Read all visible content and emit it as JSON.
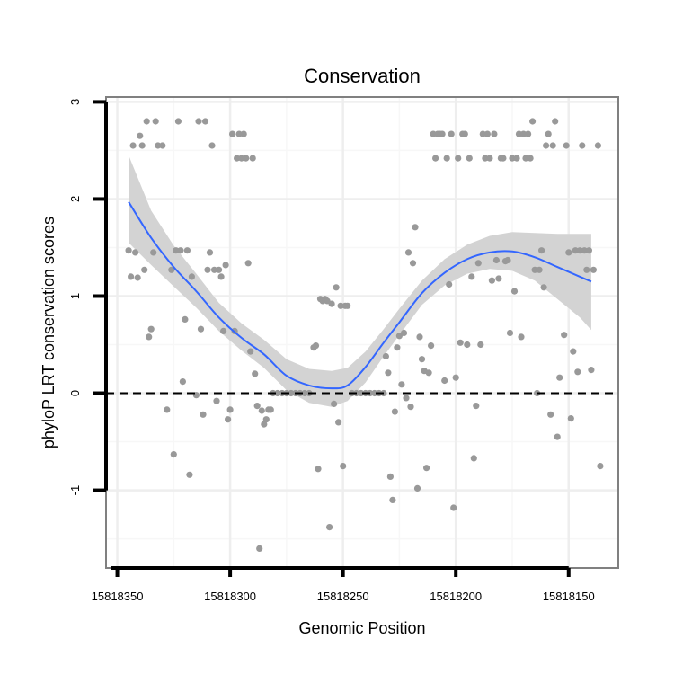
{
  "chart_data": {
    "type": "scatter",
    "title": "Conservation",
    "xlabel": "Genomic Position",
    "ylabel": "phyloP LRT conservation scores",
    "xlim": [
      15818355,
      15818128
    ],
    "ylim": [
      -1.8,
      3.05
    ],
    "x_reversed": true,
    "grid": true,
    "legend": "none",
    "x_ticks": [
      {
        "value": 15818350,
        "label": "15818350"
      },
      {
        "value": 15818300,
        "label": "15818300"
      },
      {
        "value": 15818250,
        "label": "15818250"
      },
      {
        "value": 15818200,
        "label": "15818200"
      },
      {
        "value": 15818150,
        "label": "15818150"
      }
    ],
    "y_ticks": [
      {
        "value": -1,
        "label": "-1"
      },
      {
        "value": 0,
        "label": "0"
      },
      {
        "value": 1,
        "label": "1"
      },
      {
        "value": 2,
        "label": "2"
      },
      {
        "value": 3,
        "label": "3"
      }
    ],
    "reference_line": {
      "y": 0,
      "style": "dashed"
    },
    "colors": {
      "points": "#999999",
      "smooth_line": "#3366FF",
      "confidence_band": "#D3D3D3",
      "panel_border": "#808080",
      "grid_major": "#EEEEEE",
      "grid_minor": "#F7F7F7"
    },
    "smooth": {
      "x": [
        15818345,
        15818335,
        15818325,
        15818315,
        15818305,
        15818295,
        15818285,
        15818275,
        15818265,
        15818255,
        15818248,
        15818240,
        15818232,
        15818225,
        15818215,
        15818205,
        15818195,
        15818185,
        15818175,
        15818165,
        15818155,
        15818145,
        15818140
      ],
      "y": [
        1.97,
        1.6,
        1.3,
        1.05,
        0.78,
        0.57,
        0.4,
        0.18,
        0.08,
        0.05,
        0.08,
        0.27,
        0.52,
        0.73,
        1.03,
        1.24,
        1.38,
        1.45,
        1.46,
        1.4,
        1.3,
        1.2,
        1.15
      ],
      "lower": [
        1.55,
        1.32,
        1.1,
        0.88,
        0.64,
        0.44,
        0.26,
        0.03,
        -0.1,
        -0.14,
        -0.08,
        0.11,
        0.38,
        0.6,
        0.91,
        1.11,
        1.23,
        1.28,
        1.26,
        1.16,
        0.97,
        0.78,
        0.65
      ],
      "upper": [
        2.45,
        1.88,
        1.52,
        1.23,
        0.93,
        0.72,
        0.55,
        0.35,
        0.25,
        0.23,
        0.26,
        0.43,
        0.66,
        0.87,
        1.16,
        1.38,
        1.53,
        1.62,
        1.66,
        1.65,
        1.64,
        1.64,
        1.64
      ]
    },
    "points": [
      {
        "x": 15818345,
        "y": 1.47
      },
      {
        "x": 15818344,
        "y": 1.2
      },
      {
        "x": 15818343,
        "y": 2.55
      },
      {
        "x": 15818342,
        "y": 1.45
      },
      {
        "x": 15818341,
        "y": 1.19
      },
      {
        "x": 15818340,
        "y": 2.65
      },
      {
        "x": 15818339,
        "y": 2.55
      },
      {
        "x": 15818338,
        "y": 1.27
      },
      {
        "x": 15818337,
        "y": 2.8
      },
      {
        "x": 15818336,
        "y": 0.58
      },
      {
        "x": 15818335,
        "y": 0.66
      },
      {
        "x": 15818334,
        "y": 1.45
      },
      {
        "x": 15818333,
        "y": 2.8
      },
      {
        "x": 15818332,
        "y": 2.55
      },
      {
        "x": 15818330,
        "y": 2.55
      },
      {
        "x": 15818328,
        "y": -0.17
      },
      {
        "x": 15818326,
        "y": 1.27
      },
      {
        "x": 15818325,
        "y": -0.63
      },
      {
        "x": 15818324,
        "y": 1.47
      },
      {
        "x": 15818323,
        "y": 2.8
      },
      {
        "x": 15818322,
        "y": 1.47
      },
      {
        "x": 15818321,
        "y": 0.12
      },
      {
        "x": 15818320,
        "y": 0.76
      },
      {
        "x": 15818319,
        "y": 1.47
      },
      {
        "x": 15818318,
        "y": -0.84
      },
      {
        "x": 15818317,
        "y": 1.2
      },
      {
        "x": 15818315,
        "y": -0.02
      },
      {
        "x": 15818314,
        "y": 2.8
      },
      {
        "x": 15818313,
        "y": 0.66
      },
      {
        "x": 15818312,
        "y": -0.22
      },
      {
        "x": 15818311,
        "y": 2.8
      },
      {
        "x": 15818310,
        "y": 1.27
      },
      {
        "x": 15818309,
        "y": 1.45
      },
      {
        "x": 15818308,
        "y": 2.55
      },
      {
        "x": 15818307,
        "y": 1.27
      },
      {
        "x": 15818306,
        "y": -0.08
      },
      {
        "x": 15818305,
        "y": 1.27
      },
      {
        "x": 15818304,
        "y": 1.2
      },
      {
        "x": 15818303,
        "y": 0.64
      },
      {
        "x": 15818302,
        "y": 1.32
      },
      {
        "x": 15818301,
        "y": -0.27
      },
      {
        "x": 15818300,
        "y": -0.17
      },
      {
        "x": 15818299,
        "y": 2.67
      },
      {
        "x": 15818298,
        "y": 0.64
      },
      {
        "x": 15818297,
        "y": 2.42
      },
      {
        "x": 15818296,
        "y": 2.67
      },
      {
        "x": 15818295,
        "y": 2.42
      },
      {
        "x": 15818294,
        "y": 2.67
      },
      {
        "x": 15818293,
        "y": 2.42
      },
      {
        "x": 15818292,
        "y": 1.34
      },
      {
        "x": 15818291,
        "y": 0.43
      },
      {
        "x": 15818290,
        "y": 2.42
      },
      {
        "x": 15818289,
        "y": 0.2
      },
      {
        "x": 15818288,
        "y": -0.13
      },
      {
        "x": 15818287,
        "y": -1.6
      },
      {
        "x": 15818286,
        "y": -0.18
      },
      {
        "x": 15818285,
        "y": -0.32
      },
      {
        "x": 15818284,
        "y": -0.27
      },
      {
        "x": 15818283,
        "y": -0.17
      },
      {
        "x": 15818282,
        "y": -0.17
      },
      {
        "x": 15818281,
        "y": 0.0
      },
      {
        "x": 15818279,
        "y": 0.0
      },
      {
        "x": 15818277,
        "y": 0.0
      },
      {
        "x": 15818275,
        "y": 0.0
      },
      {
        "x": 15818273,
        "y": 0.0
      },
      {
        "x": 15818271,
        "y": 0.0
      },
      {
        "x": 15818269,
        "y": 0.0
      },
      {
        "x": 15818267,
        "y": 0.0
      },
      {
        "x": 15818265,
        "y": 0.0
      },
      {
        "x": 15818263,
        "y": 0.47
      },
      {
        "x": 15818262,
        "y": 0.49
      },
      {
        "x": 15818261,
        "y": -0.78
      },
      {
        "x": 15818260,
        "y": 0.97
      },
      {
        "x": 15818259,
        "y": 0.95
      },
      {
        "x": 15818258,
        "y": 0.97
      },
      {
        "x": 15818257,
        "y": 0.95
      },
      {
        "x": 15818256,
        "y": -1.38
      },
      {
        "x": 15818255,
        "y": 0.92
      },
      {
        "x": 15818254,
        "y": -0.11
      },
      {
        "x": 15818253,
        "y": 1.09
      },
      {
        "x": 15818252,
        "y": -0.3
      },
      {
        "x": 15818251,
        "y": 0.9
      },
      {
        "x": 15818250,
        "y": -0.75
      },
      {
        "x": 15818249,
        "y": 0.9
      },
      {
        "x": 15818248,
        "y": 0.9
      },
      {
        "x": 15818246,
        "y": 0.0
      },
      {
        "x": 15818244,
        "y": 0.0
      },
      {
        "x": 15818242,
        "y": 0.0
      },
      {
        "x": 15818240,
        "y": 0.0
      },
      {
        "x": 15818238,
        "y": 0.0
      },
      {
        "x": 15818236,
        "y": 0.0
      },
      {
        "x": 15818234,
        "y": 0.0
      },
      {
        "x": 15818232,
        "y": 0.0
      },
      {
        "x": 15818231,
        "y": 0.38
      },
      {
        "x": 15818230,
        "y": 0.21
      },
      {
        "x": 15818229,
        "y": -0.86
      },
      {
        "x": 15818228,
        "y": -1.1
      },
      {
        "x": 15818227,
        "y": -0.19
      },
      {
        "x": 15818226,
        "y": 0.47
      },
      {
        "x": 15818225,
        "y": 0.59
      },
      {
        "x": 15818224,
        "y": 0.09
      },
      {
        "x": 15818223,
        "y": 0.62
      },
      {
        "x": 15818222,
        "y": -0.05
      },
      {
        "x": 15818221,
        "y": 1.45
      },
      {
        "x": 15818220,
        "y": -0.14
      },
      {
        "x": 15818219,
        "y": 1.34
      },
      {
        "x": 15818218,
        "y": 1.71
      },
      {
        "x": 15818217,
        "y": -0.98
      },
      {
        "x": 15818216,
        "y": 0.58
      },
      {
        "x": 15818215,
        "y": 0.35
      },
      {
        "x": 15818214,
        "y": 0.23
      },
      {
        "x": 15818213,
        "y": -0.77
      },
      {
        "x": 15818212,
        "y": 0.21
      },
      {
        "x": 15818211,
        "y": 0.49
      },
      {
        "x": 15818210,
        "y": 2.67
      },
      {
        "x": 15818209,
        "y": 2.42
      },
      {
        "x": 15818208,
        "y": 2.67
      },
      {
        "x": 15818207,
        "y": 2.67
      },
      {
        "x": 15818206,
        "y": 2.67
      },
      {
        "x": 15818205,
        "y": 0.13
      },
      {
        "x": 15818204,
        "y": 2.42
      },
      {
        "x": 15818203,
        "y": 1.12
      },
      {
        "x": 15818202,
        "y": 2.67
      },
      {
        "x": 15818201,
        "y": -1.18
      },
      {
        "x": 15818200,
        "y": 0.16
      },
      {
        "x": 15818199,
        "y": 2.42
      },
      {
        "x": 15818198,
        "y": 0.52
      },
      {
        "x": 15818197,
        "y": 2.67
      },
      {
        "x": 15818196,
        "y": 2.67
      },
      {
        "x": 15818195,
        "y": 0.5
      },
      {
        "x": 15818194,
        "y": 2.42
      },
      {
        "x": 15818193,
        "y": 1.2
      },
      {
        "x": 15818192,
        "y": -0.67
      },
      {
        "x": 15818191,
        "y": -0.13
      },
      {
        "x": 15818190,
        "y": 1.34
      },
      {
        "x": 15818189,
        "y": 0.5
      },
      {
        "x": 15818188,
        "y": 2.67
      },
      {
        "x": 15818187,
        "y": 2.42
      },
      {
        "x": 15818186,
        "y": 2.67
      },
      {
        "x": 15818185,
        "y": 2.42
      },
      {
        "x": 15818184,
        "y": 1.16
      },
      {
        "x": 15818183,
        "y": 2.67
      },
      {
        "x": 15818182,
        "y": 1.37
      },
      {
        "x": 15818181,
        "y": 1.18
      },
      {
        "x": 15818180,
        "y": 2.42
      },
      {
        "x": 15818179,
        "y": 2.42
      },
      {
        "x": 15818178,
        "y": 1.36
      },
      {
        "x": 15818177,
        "y": 1.37
      },
      {
        "x": 15818176,
        "y": 0.62
      },
      {
        "x": 15818175,
        "y": 2.42
      },
      {
        "x": 15818174,
        "y": 1.05
      },
      {
        "x": 15818173,
        "y": 2.42
      },
      {
        "x": 15818172,
        "y": 2.67
      },
      {
        "x": 15818171,
        "y": 0.58
      },
      {
        "x": 15818170,
        "y": 2.67
      },
      {
        "x": 15818169,
        "y": 2.42
      },
      {
        "x": 15818168,
        "y": 2.67
      },
      {
        "x": 15818167,
        "y": 2.42
      },
      {
        "x": 15818166,
        "y": 2.8
      },
      {
        "x": 15818165,
        "y": 1.27
      },
      {
        "x": 15818164,
        "y": 0.0
      },
      {
        "x": 15818163,
        "y": 1.27
      },
      {
        "x": 15818162,
        "y": 1.47
      },
      {
        "x": 15818161,
        "y": 1.09
      },
      {
        "x": 15818160,
        "y": 2.55
      },
      {
        "x": 15818159,
        "y": 2.67
      },
      {
        "x": 15818158,
        "y": -0.22
      },
      {
        "x": 15818157,
        "y": 2.55
      },
      {
        "x": 15818156,
        "y": 2.8
      },
      {
        "x": 15818155,
        "y": -0.45
      },
      {
        "x": 15818154,
        "y": 0.16
      },
      {
        "x": 15818152,
        "y": 0.6
      },
      {
        "x": 15818151,
        "y": 2.55
      },
      {
        "x": 15818150,
        "y": 1.45
      },
      {
        "x": 15818149,
        "y": -0.26
      },
      {
        "x": 15818148,
        "y": 0.43
      },
      {
        "x": 15818147,
        "y": 1.47
      },
      {
        "x": 15818146,
        "y": 0.22
      },
      {
        "x": 15818145,
        "y": 1.47
      },
      {
        "x": 15818144,
        "y": 2.55
      },
      {
        "x": 15818143,
        "y": 1.47
      },
      {
        "x": 15818142,
        "y": 1.27
      },
      {
        "x": 15818141,
        "y": 1.47
      },
      {
        "x": 15818140,
        "y": 0.24
      },
      {
        "x": 15818139,
        "y": 1.27
      },
      {
        "x": 15818137,
        "y": 2.55
      },
      {
        "x": 15818136,
        "y": -0.75
      }
    ]
  }
}
